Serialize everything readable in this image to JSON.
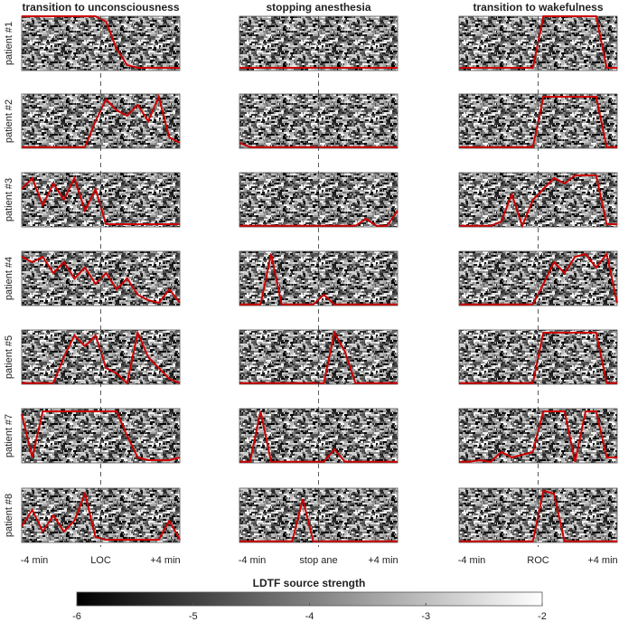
{
  "chart_data": {
    "type": "raster-grid",
    "columns": [
      {
        "title": "transition to unconsciousness",
        "xtick_labels": [
          "-4 min",
          "LOC",
          "+4 min"
        ]
      },
      {
        "title": "stopping anesthesia",
        "xtick_labels": [
          "-4 min",
          "stop ane",
          "+4 min"
        ]
      },
      {
        "title": "transition to wakefulness",
        "xtick_labels": [
          "-4 min",
          "ROC",
          "+4 min"
        ]
      }
    ],
    "trace_color": "#cc0000",
    "rows": [
      {
        "label": "patient #1",
        "traces": [
          [
            1,
            1,
            1,
            1,
            1,
            1,
            1,
            1,
            0.9,
            0.4,
            0.1,
            0.05,
            0.05,
            0.05,
            0.05,
            0.05
          ],
          [
            0.05,
            0.05,
            0.05,
            0.05,
            0.05,
            0.05,
            0.05,
            0.05,
            0.05,
            0.05,
            0.05,
            0.05,
            0.05,
            0.05,
            0.05,
            0.05
          ],
          [
            0.05,
            0.05,
            0.05,
            0.05,
            0.05,
            0.05,
            0.05,
            0.05,
            1,
            1,
            1,
            1,
            1,
            1,
            0.05,
            0.05
          ]
        ]
      },
      {
        "label": "patient #2",
        "traces": [
          [
            0.02,
            0.02,
            0.02,
            0.02,
            0.02,
            0.02,
            0.02,
            0.5,
            0.9,
            0.7,
            0.6,
            0.8,
            0.5,
            0.95,
            0.2,
            0.1
          ],
          [
            0.1,
            0.02,
            0.02,
            0.02,
            0.02,
            0.02,
            0.02,
            0.02,
            0.02,
            0.02,
            0.02,
            0.02,
            0.02,
            0.02,
            0.02,
            0.02
          ],
          [
            0.02,
            0.02,
            0.02,
            0.02,
            0.02,
            0.02,
            0.02,
            0.02,
            0.95,
            0.95,
            0.95,
            0.95,
            0.95,
            0.95,
            0.02,
            0.02
          ]
        ]
      },
      {
        "label": "patient #3",
        "traces": [
          [
            0.7,
            0.9,
            0.4,
            0.8,
            0.5,
            0.9,
            0.3,
            0.7,
            0.05,
            0.05,
            0.05,
            0.05,
            0.05,
            0.05,
            0.05,
            0.05
          ],
          [
            0.02,
            0.02,
            0.02,
            0.02,
            0.02,
            0.02,
            0.02,
            0.02,
            0.02,
            0.02,
            0.02,
            0.02,
            0.15,
            0.02,
            0.02,
            0.3
          ],
          [
            0.02,
            0.02,
            0.02,
            0.02,
            0.1,
            0.6,
            0.02,
            0.5,
            0.7,
            0.9,
            0.8,
            0.95,
            0.95,
            0.95,
            0.05,
            0.05
          ]
        ]
      },
      {
        "label": "patient #4",
        "traces": [
          [
            0.9,
            0.8,
            0.9,
            0.6,
            0.8,
            0.5,
            0.7,
            0.4,
            0.6,
            0.3,
            0.5,
            0.2,
            0.1,
            0.05,
            0.3,
            0.05
          ],
          [
            0.02,
            0.02,
            0.02,
            0.95,
            0.02,
            0.02,
            0.02,
            0.02,
            0.2,
            0.02,
            0.02,
            0.02,
            0.02,
            0.02,
            0.02,
            0.02
          ],
          [
            0.02,
            0.02,
            0.02,
            0.02,
            0.02,
            0.02,
            0.02,
            0.02,
            0.4,
            0.8,
            0.6,
            0.9,
            0.95,
            0.7,
            0.95,
            0.05
          ]
        ]
      },
      {
        "label": "patient #5",
        "traces": [
          [
            0.02,
            0.02,
            0.02,
            0.02,
            0.5,
            0.9,
            0.7,
            0.9,
            0.3,
            0.2,
            0.02,
            0.95,
            0.5,
            0.3,
            0.1,
            0.02
          ],
          [
            0.02,
            0.02,
            0.02,
            0.02,
            0.02,
            0.02,
            0.02,
            0.02,
            0.02,
            0.95,
            0.6,
            0.02,
            0.02,
            0.02,
            0.02,
            0.02
          ],
          [
            0.02,
            0.02,
            0.02,
            0.02,
            0.02,
            0.02,
            0.02,
            0.02,
            0.95,
            0.95,
            0.95,
            0.95,
            0.95,
            0.95,
            0.02,
            0.02
          ]
        ]
      },
      {
        "label": "patient #7",
        "traces": [
          [
            0.9,
            0.1,
            0.95,
            0.95,
            0.95,
            0.95,
            0.95,
            0.95,
            0.95,
            0.95,
            0.5,
            0.1,
            0.05,
            0.05,
            0.05,
            0.1
          ],
          [
            0.02,
            0.02,
            0.95,
            0.02,
            0.02,
            0.02,
            0.02,
            0.02,
            0.02,
            0.25,
            0.02,
            0.02,
            0.02,
            0.02,
            0.02,
            0.02
          ],
          [
            0.02,
            0.02,
            0.05,
            0.02,
            0.2,
            0.1,
            0.15,
            0.2,
            0.95,
            0.95,
            0.95,
            0.02,
            0.95,
            0.95,
            0.1,
            0.1
          ]
        ]
      },
      {
        "label": "patient #8",
        "traces": [
          [
            0.3,
            0.6,
            0.2,
            0.5,
            0.2,
            0.4,
            0.9,
            0.1,
            0.05,
            0.05,
            0.05,
            0.05,
            0.05,
            0.05,
            0.4,
            0.05
          ],
          [
            0.02,
            0.02,
            0.02,
            0.02,
            0.02,
            0.02,
            0.8,
            0.02,
            0.02,
            0.02,
            0.02,
            0.02,
            0.02,
            0.02,
            0.02,
            0.02
          ],
          [
            0.02,
            0.02,
            0.02,
            0.02,
            0.02,
            0.02,
            0.02,
            0.02,
            0.95,
            0.9,
            0.02,
            0.02,
            0.02,
            0.02,
            0.02,
            0.02
          ]
        ]
      }
    ],
    "colorbar": {
      "title": "LDTF source strength",
      "lim": [
        -6,
        -2
      ],
      "ticks": [
        -6,
        -5,
        -4,
        -3,
        -2
      ]
    }
  }
}
